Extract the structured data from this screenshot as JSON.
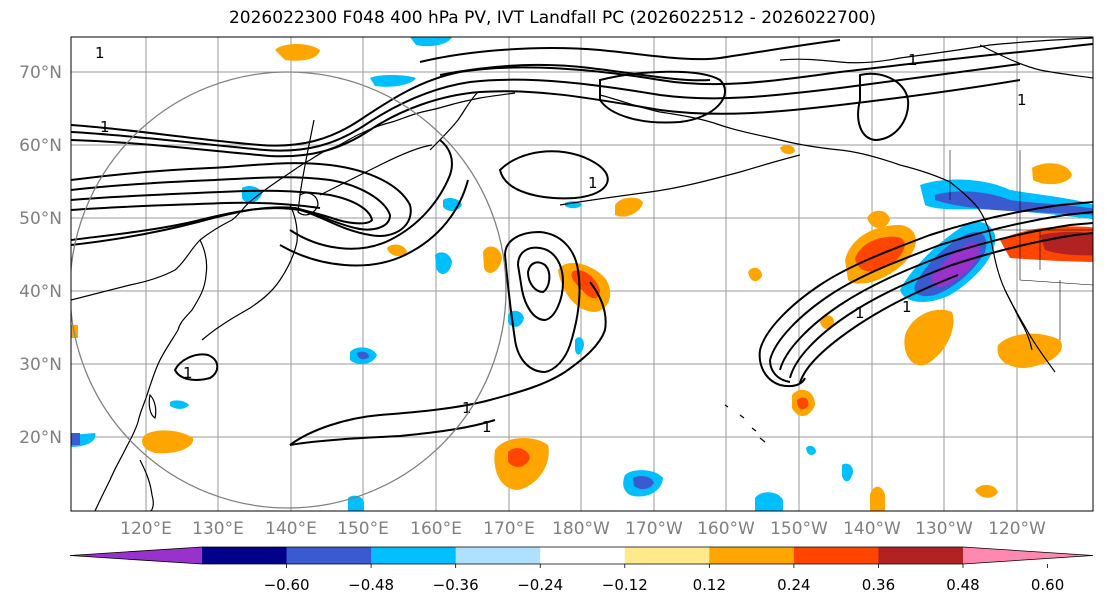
{
  "title": "2026022300 F048 400 hPa PV, IVT Landfall PC (2026022512 - 2026022700)",
  "map": {
    "lat_labels": [
      "70°N",
      "60°N",
      "50°N",
      "40°N",
      "30°N",
      "20°N"
    ],
    "lon_labels": [
      "120°E",
      "130°E",
      "140°E",
      "150°E",
      "160°E",
      "170°E",
      "180°W",
      "170°W",
      "160°W",
      "150°W",
      "140°W",
      "130°W",
      "120°W"
    ],
    "contour_label": "1",
    "label_color": "#808080"
  },
  "colorbar": {
    "ticks": [
      "−0.60",
      "−0.48",
      "−0.36",
      "−0.24",
      "−0.12",
      "0.12",
      "0.24",
      "0.36",
      "0.48",
      "0.60"
    ],
    "colors": [
      "#9932CC",
      "#00008B",
      "#3A5BCF",
      "#00BFFF",
      "#B0E0FF",
      "#FFFFFF",
      "#FFE98A",
      "#FFA500",
      "#FF4500",
      "#B22222",
      "#FF88B0"
    ]
  }
}
